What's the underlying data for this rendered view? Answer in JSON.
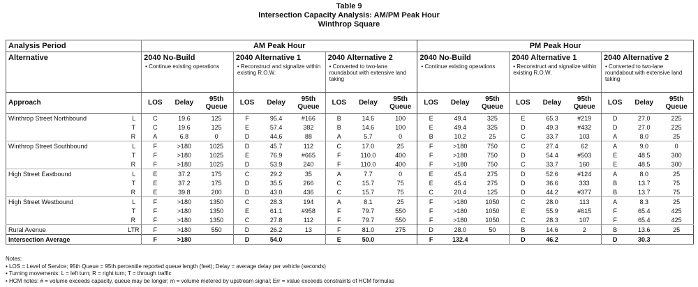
{
  "header": {
    "table_label": "Table 9",
    "title": "Intersection Capacity Analysis: AM/PM Peak Hour",
    "subtitle": "Winthrop Square"
  },
  "table": {
    "period_label": "Analysis Period",
    "periods": [
      "AM Peak Hour",
      "PM Peak Hour"
    ],
    "alternative_label": "Alternative",
    "alternatives": [
      {
        "name": "2040 No-Build",
        "description": "• Continue existing operations"
      },
      {
        "name": "2040 Alternative 1",
        "description": "• Reconstruct and signalize within existing R.O.W."
      },
      {
        "name": "2040 Alternative 2",
        "description": "• Converted to two-lane roundabout with extensive land taking"
      },
      {
        "name": "2040 No-Build",
        "description": "• Continue existing operations"
      },
      {
        "name": "2040 Alternative 1",
        "description": "• Reconstruct and signalize within existing R.O.W."
      },
      {
        "name": "2040 Alternative 2",
        "description": "• Converted to two-lane roundabout with extensive land taking"
      }
    ],
    "approach_label": "Approach",
    "measures": [
      "LOS",
      "Delay",
      "95th Queue"
    ],
    "rows": [
      {
        "approach": "Winthrop Street Northbound",
        "movement": "L",
        "cells": [
          "C",
          "19.6",
          "125",
          "F",
          "95.4",
          "#166",
          "B",
          "14.6",
          "100",
          "E",
          "49.4",
          "325",
          "E",
          "65.3",
          "#219",
          "D",
          "27.0",
          "225"
        ]
      },
      {
        "movement": "T",
        "cells": [
          "C",
          "19.6",
          "125",
          "E",
          "57.4",
          "382",
          "B",
          "14.6",
          "100",
          "E",
          "49.4",
          "325",
          "D",
          "49.3",
          "#432",
          "D",
          "27.0",
          "225"
        ]
      },
      {
        "movement": "R",
        "cells": [
          "A",
          "6.8",
          "0",
          "D",
          "44.6",
          "88",
          "A",
          "5.7",
          "0",
          "B",
          "10.2",
          "25",
          "C",
          "33.7",
          "103",
          "A",
          "8.0",
          "25"
        ]
      },
      {
        "approach": "Winthrop Street Southbound",
        "movement": "L",
        "cells": [
          "F",
          ">180",
          "1025",
          "D",
          "45.7",
          "112",
          "C",
          "17.0",
          "25",
          "F",
          ">180",
          "750",
          "C",
          "27.4",
          "62",
          "A",
          "9.0",
          "0"
        ]
      },
      {
        "movement": "T",
        "cells": [
          "F",
          ">180",
          "1025",
          "E",
          "76.9",
          "#665",
          "F",
          "110.0",
          "400",
          "F",
          ">180",
          "750",
          "D",
          "54.4",
          "#503",
          "E",
          "48.5",
          "300"
        ]
      },
      {
        "movement": "R",
        "cells": [
          "F",
          ">180",
          "1025",
          "D",
          "53.9",
          "240",
          "F",
          "110.0",
          "400",
          "F",
          ">180",
          "750",
          "C",
          "33.7",
          "160",
          "E",
          "48.5",
          "300"
        ]
      },
      {
        "approach": "High Street Eastbound",
        "movement": "L",
        "cells": [
          "E",
          "37.2",
          "175",
          "C",
          "29.2",
          "35",
          "A",
          "7.7",
          "0",
          "E",
          "45.4",
          "275",
          "D",
          "52.6",
          "#124",
          "A",
          "8.0",
          "25"
        ]
      },
      {
        "movement": "T",
        "cells": [
          "E",
          "37.2",
          "175",
          "D",
          "35.5",
          "266",
          "C",
          "15.7",
          "75",
          "E",
          "45.4",
          "275",
          "D",
          "36.6",
          "333",
          "B",
          "13.7",
          "75"
        ]
      },
      {
        "movement": "R",
        "cells": [
          "E",
          "39.8",
          "200",
          "D",
          "43.0",
          "436",
          "C",
          "15.7",
          "75",
          "C",
          "20.4",
          "125",
          "D",
          "44.2",
          "#377",
          "B",
          "13.7",
          "75"
        ]
      },
      {
        "approach": "High Street Westbound",
        "movement": "L",
        "cells": [
          "F",
          ">180",
          "1350",
          "C",
          "28.3",
          "194",
          "A",
          "8.1",
          "25",
          "F",
          ">180",
          "1050",
          "C",
          "28.0",
          "113",
          "A",
          "8.3",
          "25"
        ]
      },
      {
        "movement": "T",
        "cells": [
          "F",
          ">180",
          "1350",
          "E",
          "61.1",
          "#958",
          "F",
          "79.7",
          "550",
          "F",
          ">180",
          "1050",
          "E",
          "55.9",
          "#615",
          "F",
          "65.4",
          "425"
        ]
      },
      {
        "movement": "R",
        "cells": [
          "F",
          ">180",
          "1350",
          "C",
          "27.8",
          "112",
          "F",
          "79.7",
          "550",
          "F",
          ">180",
          "1050",
          "C",
          "28.3",
          "107",
          "F",
          "65.4",
          "425"
        ]
      },
      {
        "approach": "Rural Avenue",
        "movement": "LTR",
        "cells": [
          "F",
          ">180",
          "550",
          "D",
          "26.2",
          "13",
          "F",
          "81.0",
          "275",
          "D",
          "28.0",
          "50",
          "B",
          "14.6",
          "2",
          "B",
          "13.6",
          "25"
        ]
      }
    ],
    "average": {
      "label": "Intersection Average",
      "cells": [
        "F",
        ">180",
        "D",
        "54.0",
        "E",
        "50.0",
        "F",
        "132.4",
        "D",
        "46.2",
        "D",
        "30.3"
      ]
    }
  },
  "notes": [
    "Notes:",
    "• LOS = Level of Service; 95th Queue = 95th percentile reported queue length (feet); Delay = average delay per vehicle (seconds)",
    "• Turning movements: L = left turn; R = right turn; T = through traffic",
    "• HCM notes: # = volume exceeds capacity, queue may be longer; m = volume metered by upstream signal; Err = value exceeds constraints of HCM formulas"
  ]
}
